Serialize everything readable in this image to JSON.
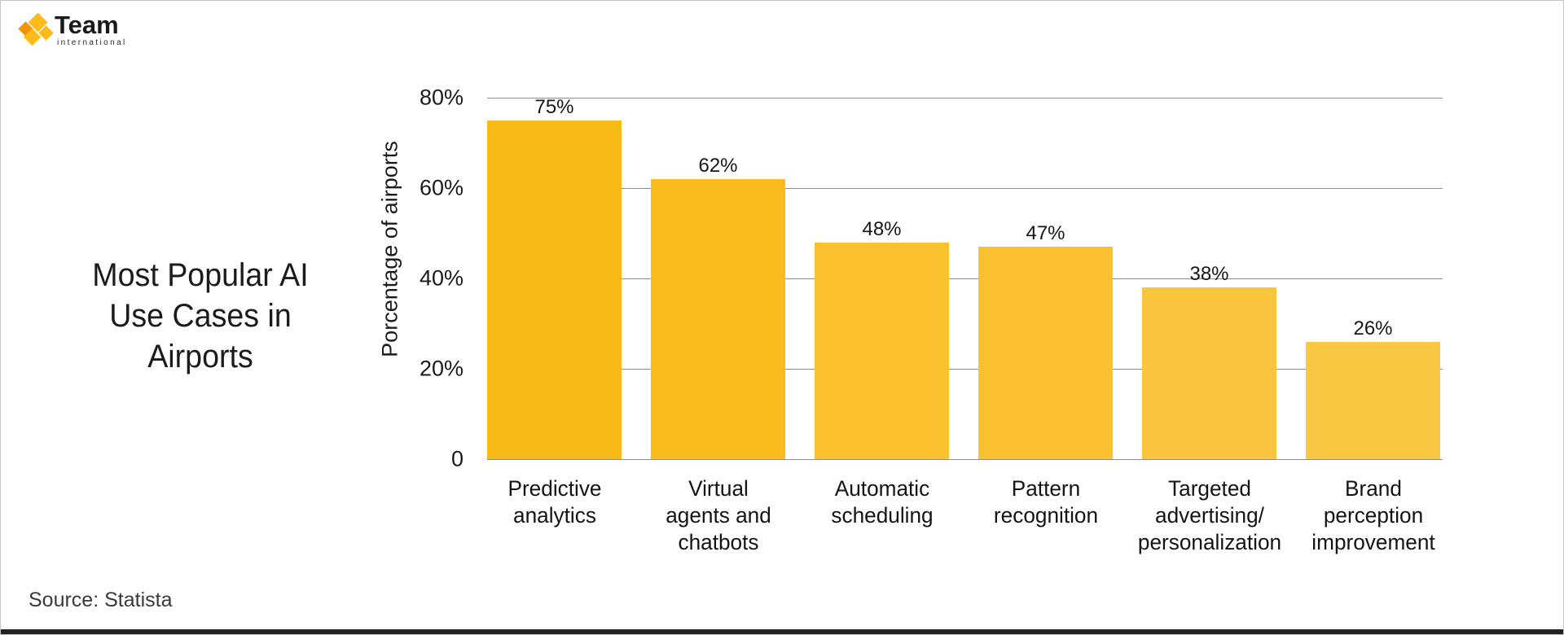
{
  "logo": {
    "brand": "Team",
    "subtitle": "international",
    "icon": "team-international-mark",
    "colors": {
      "orange": "#F29404",
      "yellow": "#FFBB1C"
    }
  },
  "title": {
    "lines": [
      "Most Popular AI",
      "Use Cases in",
      "Airports"
    ]
  },
  "source": "Source: Statista",
  "chart_data": {
    "type": "bar",
    "title": "Most Popular AI Use Cases in Airports",
    "categories": [
      "Predictive analytics",
      "Virtual agents and chatbots",
      "Automatic scheduling",
      "Pattern recognition",
      "Targeted advertising/ personalization",
      "Brand perception improvement"
    ],
    "category_lines": [
      [
        "Predictive",
        "analytics"
      ],
      [
        "Virtual",
        "agents and",
        "chatbots"
      ],
      [
        "Automatic",
        "scheduling"
      ],
      [
        "Pattern",
        "recognition"
      ],
      [
        "Targeted",
        "advertising/",
        "personalization"
      ],
      [
        "Brand",
        "perception",
        "improvement"
      ]
    ],
    "values": [
      75,
      62,
      48,
      47,
      38,
      26
    ],
    "value_labels": [
      "75%",
      "62%",
      "48%",
      "47%",
      "38%",
      "26%"
    ],
    "bar_colors": [
      "#F8BA16",
      "#F9BC1C",
      "#FAC22E",
      "#FAC231",
      "#FBC63E",
      "#FBC844"
    ],
    "xlabel": "",
    "ylabel": "Porcentage of airports",
    "ylim": [
      0,
      80
    ],
    "yticks": [
      {
        "value": 80,
        "label": "80%"
      },
      {
        "value": 60,
        "label": "60%"
      },
      {
        "value": 40,
        "label": "40%"
      },
      {
        "value": 20,
        "label": "20%"
      },
      {
        "value": 0,
        "label": "0"
      }
    ],
    "grid": true,
    "legend": null,
    "gridline_color": "#8c8c8c",
    "label_color": "#161616"
  }
}
